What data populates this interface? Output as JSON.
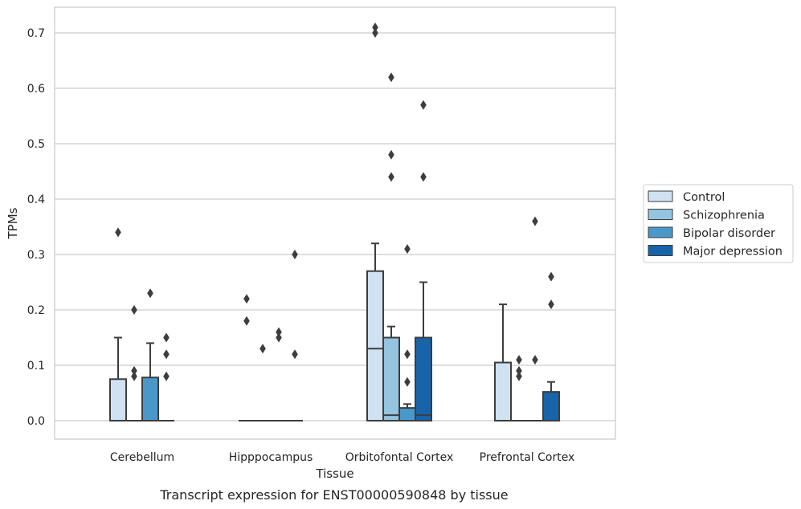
{
  "caption": "Transcript expression for ENST00000590848 by tissue",
  "chart_data": {
    "type": "box",
    "xlabel": "Tissue",
    "ylabel": "TPMs",
    "ylim": [
      -0.035,
      0.745
    ],
    "yticks": [
      "0.0",
      "0.1",
      "0.2",
      "0.3",
      "0.4",
      "0.5",
      "0.6",
      "0.7"
    ],
    "grid": true,
    "legend_position": "right",
    "categories": [
      "Cerebellum",
      "Hipppocampus",
      "Orbitofontal Cortex",
      "Prefrontal Cortex"
    ],
    "series": [
      {
        "name": "Control",
        "color": "#d0e1f2",
        "boxes": [
          {
            "q1": 0,
            "median": 0,
            "q3": 0.075,
            "whisker_low": 0,
            "whisker_high": 0.15,
            "outliers": [
              0.34
            ]
          },
          {
            "q1": 0,
            "median": 0,
            "q3": 0,
            "whisker_low": 0,
            "whisker_high": 0,
            "outliers": [
              0.22,
              0.18
            ]
          },
          {
            "q1": 0,
            "median": 0.13,
            "q3": 0.27,
            "whisker_low": 0,
            "whisker_high": 0.32,
            "outliers": [
              0.71,
              0.7
            ]
          },
          {
            "q1": 0,
            "median": 0,
            "q3": 0.105,
            "whisker_low": 0,
            "whisker_high": 0.21,
            "outliers": []
          }
        ]
      },
      {
        "name": "Schizophrenia",
        "color": "#94c4df",
        "boxes": [
          {
            "q1": 0,
            "median": 0,
            "q3": 0,
            "whisker_low": 0,
            "whisker_high": 0,
            "outliers": [
              0.2,
              0.09,
              0.08
            ]
          },
          {
            "q1": 0,
            "median": 0,
            "q3": 0,
            "whisker_low": 0,
            "whisker_high": 0,
            "outliers": [
              0.13
            ]
          },
          {
            "q1": 0,
            "median": 0.01,
            "q3": 0.15,
            "whisker_low": 0,
            "whisker_high": 0.17,
            "outliers": [
              0.62,
              0.48,
              0.44
            ]
          },
          {
            "q1": 0,
            "median": 0,
            "q3": 0,
            "whisker_low": 0,
            "whisker_high": 0,
            "outliers": [
              0.11,
              0.09,
              0.08
            ]
          }
        ]
      },
      {
        "name": "Bipolar disorder",
        "color": "#4a98c9",
        "boxes": [
          {
            "q1": 0,
            "median": 0,
            "q3": 0.078,
            "whisker_low": 0,
            "whisker_high": 0.14,
            "outliers": [
              0.23
            ]
          },
          {
            "q1": 0,
            "median": 0,
            "q3": 0,
            "whisker_low": 0,
            "whisker_high": 0,
            "outliers": [
              0.16,
              0.15
            ]
          },
          {
            "q1": 0,
            "median": 0,
            "q3": 0.023,
            "whisker_low": 0,
            "whisker_high": 0.03,
            "outliers": [
              0.31,
              0.12,
              0.07
            ]
          },
          {
            "q1": 0,
            "median": 0,
            "q3": 0,
            "whisker_low": 0,
            "whisker_high": 0,
            "outliers": [
              0.36,
              0.11
            ]
          }
        ]
      },
      {
        "name": "Major depression",
        "color": "#1764ab",
        "boxes": [
          {
            "q1": 0,
            "median": 0,
            "q3": 0,
            "whisker_low": 0,
            "whisker_high": 0,
            "outliers": [
              0.15,
              0.12,
              0.08
            ]
          },
          {
            "q1": 0,
            "median": 0,
            "q3": 0,
            "whisker_low": 0,
            "whisker_high": 0,
            "outliers": [
              0.3,
              0.12
            ]
          },
          {
            "q1": 0,
            "median": 0.01,
            "q3": 0.15,
            "whisker_low": 0,
            "whisker_high": 0.25,
            "outliers": [
              0.57,
              0.44
            ]
          },
          {
            "q1": 0,
            "median": 0,
            "q3": 0.052,
            "whisker_low": 0,
            "whisker_high": 0.07,
            "outliers": [
              0.26,
              0.21
            ]
          }
        ]
      }
    ]
  }
}
